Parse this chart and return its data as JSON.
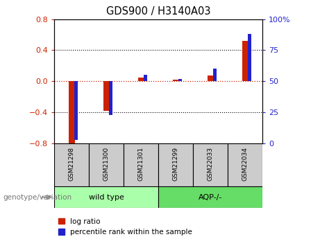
{
  "title": "GDS900 / H3140A03",
  "categories": [
    "GSM21298",
    "GSM21300",
    "GSM21301",
    "GSM21299",
    "GSM22033",
    "GSM22034"
  ],
  "log_ratio": [
    -0.82,
    -0.38,
    0.05,
    0.02,
    0.07,
    0.52
  ],
  "pct_rank": [
    3,
    23,
    55,
    52,
    60,
    88
  ],
  "ylim_left": [
    -0.8,
    0.8
  ],
  "ylim_right": [
    0,
    100
  ],
  "yticks_left": [
    -0.8,
    -0.4,
    0.0,
    0.4,
    0.8
  ],
  "yticks_right": [
    0,
    25,
    50,
    75,
    100
  ],
  "red_color": "#cc2200",
  "blue_color": "#2222cc",
  "group1_label": "wild type",
  "group2_label": "AQP-/-",
  "group1_indices": [
    0,
    1,
    2
  ],
  "group2_indices": [
    3,
    4,
    5
  ],
  "group1_color": "#aaffaa",
  "group2_color": "#66dd66",
  "label_bg_color": "#cccccc",
  "left_tick_color": "#cc2200",
  "right_tick_color": "#2222cc",
  "legend_red_label": "log ratio",
  "legend_blue_label": "percentile rank within the sample",
  "bg_color": "#ffffff",
  "genotype_label": "genotype/variation",
  "arrow_color": "#999999"
}
